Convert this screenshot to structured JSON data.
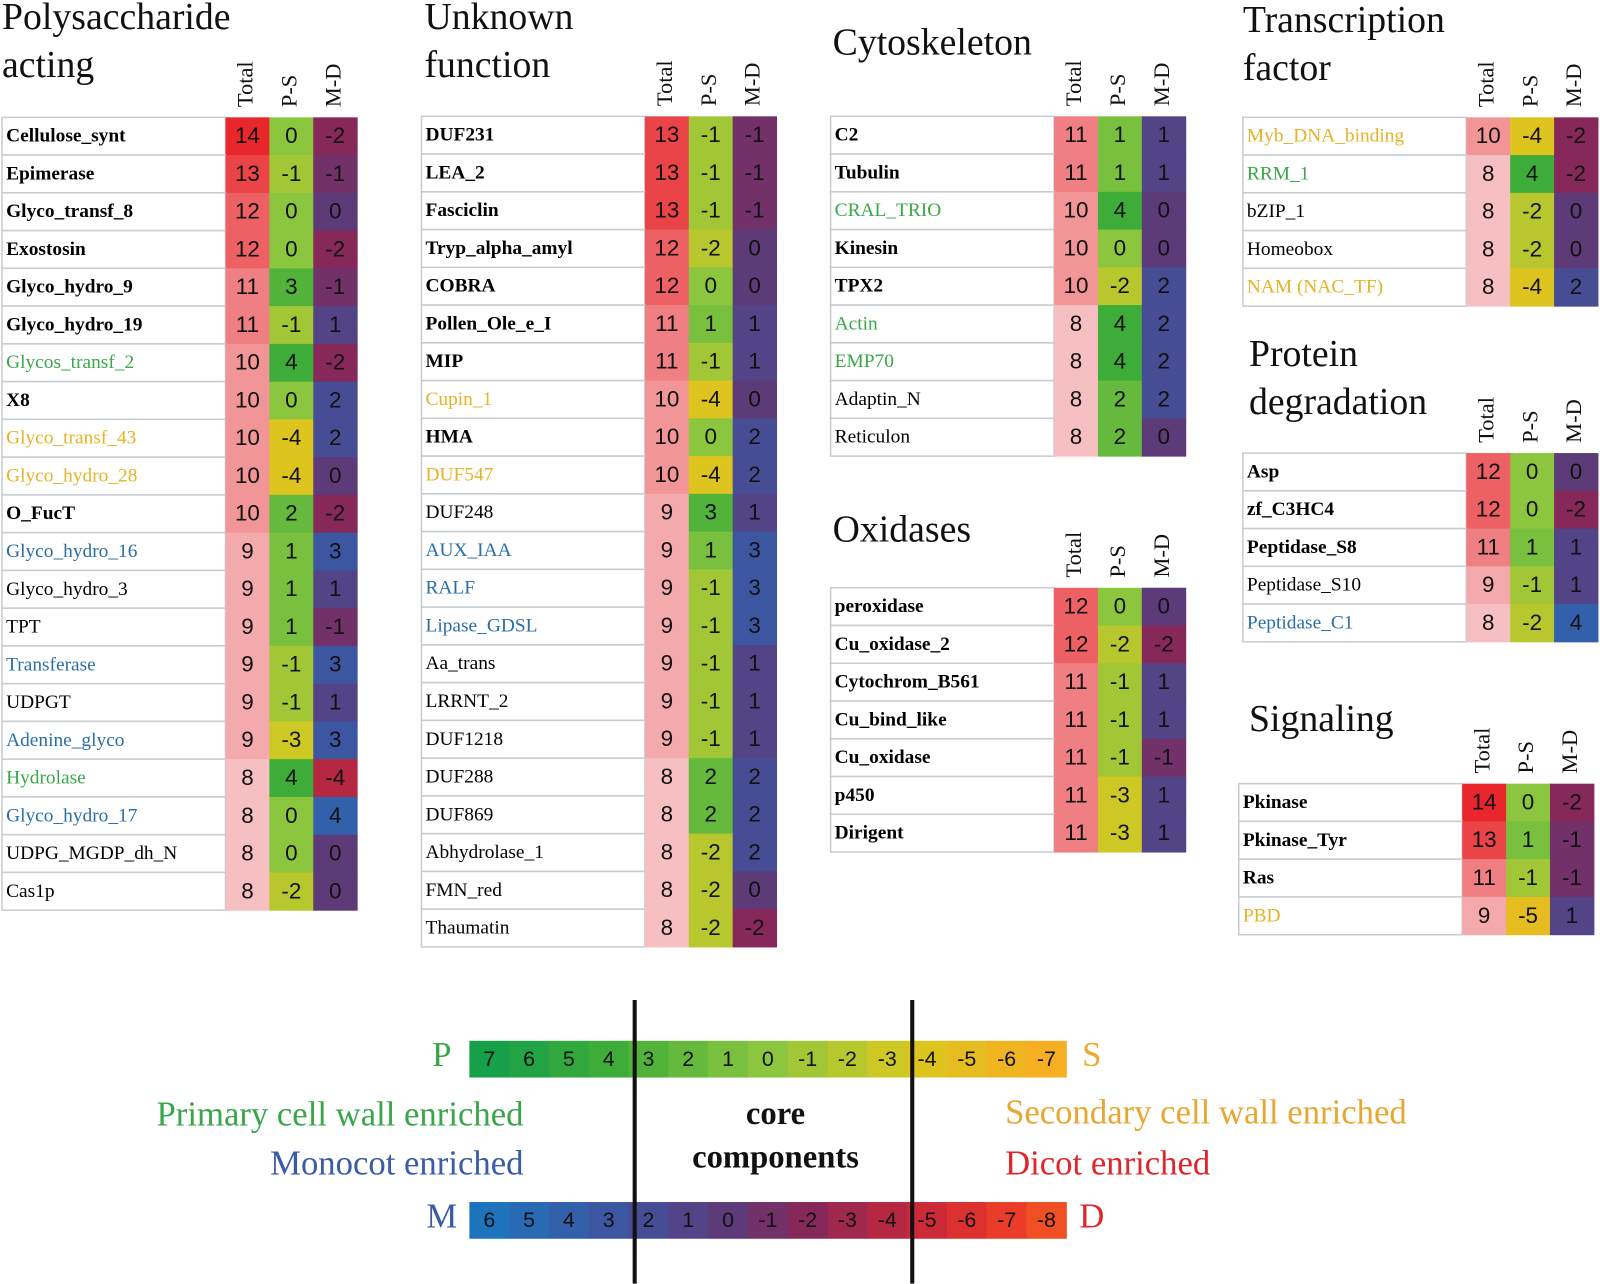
{
  "columns": [
    "Total",
    "P-S",
    "M-D"
  ],
  "panels": [
    {
      "title": [
        "Polysaccharide",
        "acting"
      ],
      "rows": [
        {
          "name": "Cellulose_synt",
          "color": "#000000",
          "bold": true,
          "total": 14,
          "ps": 0,
          "md": -2
        },
        {
          "name": "Epimerase",
          "color": "#000000",
          "bold": true,
          "total": 13,
          "ps": -1,
          "md": -1
        },
        {
          "name": "Glyco_transf_8",
          "color": "#000000",
          "bold": true,
          "total": 12,
          "ps": 0,
          "md": 0
        },
        {
          "name": "Exostosin",
          "color": "#000000",
          "bold": true,
          "total": 12,
          "ps": 0,
          "md": -2
        },
        {
          "name": "Glyco_hydro_9",
          "color": "#000000",
          "bold": true,
          "total": 11,
          "ps": 3,
          "md": -1
        },
        {
          "name": "Glyco_hydro_19",
          "color": "#000000",
          "bold": true,
          "total": 11,
          "ps": -1,
          "md": 1
        },
        {
          "name": "Glycos_transf_2",
          "color": "#3aa64a",
          "bold": false,
          "total": 10,
          "ps": 4,
          "md": -2
        },
        {
          "name": "X8",
          "color": "#000000",
          "bold": true,
          "total": 10,
          "ps": 0,
          "md": 2
        },
        {
          "name": "Glyco_transf_43",
          "color": "#e6b325",
          "bold": false,
          "total": 10,
          "ps": -4,
          "md": 2
        },
        {
          "name": "Glyco_hydro_28",
          "color": "#e6b325",
          "bold": false,
          "total": 10,
          "ps": -4,
          "md": 0
        },
        {
          "name": "O_FucT",
          "color": "#000000",
          "bold": true,
          "total": 10,
          "ps": 2,
          "md": -2
        },
        {
          "name": "Glyco_hydro_16",
          "color": "#2a6ea6",
          "bold": false,
          "total": 9,
          "ps": 1,
          "md": 3
        },
        {
          "name": "Glyco_hydro_3",
          "color": "#000000",
          "bold": false,
          "total": 9,
          "ps": 1,
          "md": 1
        },
        {
          "name": "TPT",
          "color": "#000000",
          "bold": false,
          "total": 9,
          "ps": 1,
          "md": -1
        },
        {
          "name": "Transferase",
          "color": "#2a6ea6",
          "bold": false,
          "total": 9,
          "ps": -1,
          "md": 3
        },
        {
          "name": "UDPGT",
          "color": "#000000",
          "bold": false,
          "total": 9,
          "ps": -1,
          "md": 1
        },
        {
          "name": "Adenine_glyco",
          "color": "#2a6ea6",
          "bold": false,
          "total": 9,
          "ps": -3,
          "md": 3
        },
        {
          "name": "Hydrolase",
          "color": "#3aa64a",
          "bold": false,
          "total": 8,
          "ps": 4,
          "md": -4
        },
        {
          "name": "Glyco_hydro_17",
          "color": "#2a6ea6",
          "bold": false,
          "total": 8,
          "ps": 0,
          "md": 4
        },
        {
          "name": "UDPG_MGDP_dh_N",
          "color": "#000000",
          "bold": false,
          "total": 8,
          "ps": 0,
          "md": 0
        },
        {
          "name": "Cas1p",
          "color": "#000000",
          "bold": false,
          "total": 8,
          "ps": -2,
          "md": 0
        }
      ]
    },
    {
      "title": [
        "Unknown",
        "function"
      ],
      "rows": [
        {
          "name": "DUF231",
          "color": "#000000",
          "bold": true,
          "total": 13,
          "ps": -1,
          "md": -1
        },
        {
          "name": "LEA_2",
          "color": "#000000",
          "bold": true,
          "total": 13,
          "ps": -1,
          "md": -1
        },
        {
          "name": "Fasciclin",
          "color": "#000000",
          "bold": true,
          "total": 13,
          "ps": -1,
          "md": -1
        },
        {
          "name": "Tryp_alpha_amyl",
          "color": "#000000",
          "bold": true,
          "total": 12,
          "ps": -2,
          "md": 0
        },
        {
          "name": "COBRA",
          "color": "#000000",
          "bold": true,
          "total": 12,
          "ps": 0,
          "md": 0
        },
        {
          "name": "Pollen_Ole_e_I",
          "color": "#000000",
          "bold": true,
          "total": 11,
          "ps": 1,
          "md": 1
        },
        {
          "name": "MIP",
          "color": "#000000",
          "bold": true,
          "total": 11,
          "ps": -1,
          "md": 1
        },
        {
          "name": "Cupin_1",
          "color": "#e6b325",
          "bold": false,
          "total": 10,
          "ps": -4,
          "md": 0
        },
        {
          "name": "HMA",
          "color": "#000000",
          "bold": true,
          "total": 10,
          "ps": 0,
          "md": 2
        },
        {
          "name": "DUF547",
          "color": "#e6b325",
          "bold": false,
          "total": 10,
          "ps": -4,
          "md": 2
        },
        {
          "name": "DUF248",
          "color": "#000000",
          "bold": false,
          "total": 9,
          "ps": 3,
          "md": 1
        },
        {
          "name": "AUX_IAA",
          "color": "#2a6ea6",
          "bold": false,
          "total": 9,
          "ps": 1,
          "md": 3
        },
        {
          "name": "RALF",
          "color": "#2a6ea6",
          "bold": false,
          "total": 9,
          "ps": -1,
          "md": 3
        },
        {
          "name": "Lipase_GDSL",
          "color": "#2a6ea6",
          "bold": false,
          "total": 9,
          "ps": -1,
          "md": 3
        },
        {
          "name": "Aa_trans",
          "color": "#000000",
          "bold": false,
          "total": 9,
          "ps": -1,
          "md": 1
        },
        {
          "name": "LRRNT_2",
          "color": "#000000",
          "bold": false,
          "total": 9,
          "ps": -1,
          "md": 1
        },
        {
          "name": "DUF1218",
          "color": "#000000",
          "bold": false,
          "total": 9,
          "ps": -1,
          "md": 1
        },
        {
          "name": "DUF288",
          "color": "#000000",
          "bold": false,
          "total": 8,
          "ps": 2,
          "md": 2
        },
        {
          "name": "DUF869",
          "color": "#000000",
          "bold": false,
          "total": 8,
          "ps": 2,
          "md": 2
        },
        {
          "name": "Abhydrolase_1",
          "color": "#000000",
          "bold": false,
          "total": 8,
          "ps": -2,
          "md": 2
        },
        {
          "name": "FMN_red",
          "color": "#000000",
          "bold": false,
          "total": 8,
          "ps": -2,
          "md": 0
        },
        {
          "name": "Thaumatin",
          "color": "#000000",
          "bold": false,
          "total": 8,
          "ps": -2,
          "md": -2
        }
      ]
    },
    {
      "title": [
        "Cytoskeleton"
      ],
      "rows": [
        {
          "name": "C2",
          "color": "#000000",
          "bold": true,
          "total": 11,
          "ps": 1,
          "md": 1
        },
        {
          "name": "Tubulin",
          "color": "#000000",
          "bold": true,
          "total": 11,
          "ps": 1,
          "md": 1
        },
        {
          "name": "CRAL_TRIO",
          "color": "#3aa64a",
          "bold": false,
          "total": 10,
          "ps": 4,
          "md": 0
        },
        {
          "name": "Kinesin",
          "color": "#000000",
          "bold": true,
          "total": 10,
          "ps": 0,
          "md": 0
        },
        {
          "name": "TPX2",
          "color": "#000000",
          "bold": true,
          "total": 10,
          "ps": -2,
          "md": 2
        },
        {
          "name": "Actin",
          "color": "#3aa64a",
          "bold": false,
          "total": 8,
          "ps": 4,
          "md": 2
        },
        {
          "name": "EMP70",
          "color": "#3aa64a",
          "bold": false,
          "total": 8,
          "ps": 4,
          "md": 2
        },
        {
          "name": "Adaptin_N",
          "color": "#000000",
          "bold": false,
          "total": 8,
          "ps": 2,
          "md": 2
        },
        {
          "name": "Reticulon",
          "color": "#000000",
          "bold": false,
          "total": 8,
          "ps": 2,
          "md": 0
        }
      ]
    },
    {
      "title": [
        "Oxidases"
      ],
      "rows": [
        {
          "name": "peroxidase",
          "color": "#000000",
          "bold": true,
          "total": 12,
          "ps": 0,
          "md": 0
        },
        {
          "name": "Cu_oxidase_2",
          "color": "#000000",
          "bold": true,
          "total": 12,
          "ps": -2,
          "md": -2
        },
        {
          "name": "Cytochrom_B561",
          "color": "#000000",
          "bold": true,
          "total": 11,
          "ps": -1,
          "md": 1
        },
        {
          "name": "Cu_bind_like",
          "color": "#000000",
          "bold": true,
          "total": 11,
          "ps": -1,
          "md": 1
        },
        {
          "name": "Cu_oxidase",
          "color": "#000000",
          "bold": true,
          "total": 11,
          "ps": -1,
          "md": -1
        },
        {
          "name": "p450",
          "color": "#000000",
          "bold": true,
          "total": 11,
          "ps": -3,
          "md": 1
        },
        {
          "name": "Dirigent",
          "color": "#000000",
          "bold": true,
          "total": 11,
          "ps": -3,
          "md": 1
        }
      ]
    },
    {
      "title": [
        "Transcription",
        "factor"
      ],
      "rows": [
        {
          "name": "Myb_DNA_binding",
          "color": "#e6b325",
          "bold": false,
          "total": 10,
          "ps": -4,
          "md": -2
        },
        {
          "name": "RRM_1",
          "color": "#3aa64a",
          "bold": false,
          "total": 8,
          "ps": 4,
          "md": -2
        },
        {
          "name": "bZIP_1",
          "color": "#000000",
          "bold": false,
          "total": 8,
          "ps": -2,
          "md": 0
        },
        {
          "name": "Homeobox",
          "color": "#000000",
          "bold": false,
          "total": 8,
          "ps": -2,
          "md": 0
        },
        {
          "name": "NAM (NAC_TF)",
          "color": "#e6b325",
          "bold": false,
          "total": 8,
          "ps": -4,
          "md": 2
        }
      ]
    },
    {
      "title": [
        "Protein",
        "degradation"
      ],
      "rows": [
        {
          "name": "Asp",
          "color": "#000000",
          "bold": true,
          "total": 12,
          "ps": 0,
          "md": 0
        },
        {
          "name": "zf_C3HC4",
          "color": "#000000",
          "bold": true,
          "total": 12,
          "ps": 0,
          "md": -2
        },
        {
          "name": "Peptidase_S8",
          "color": "#000000",
          "bold": true,
          "total": 11,
          "ps": 1,
          "md": 1
        },
        {
          "name": "Peptidase_S10",
          "color": "#000000",
          "bold": false,
          "total": 9,
          "ps": -1,
          "md": 1
        },
        {
          "name": "Peptidase_C1",
          "color": "#2a6ea6",
          "bold": false,
          "total": 8,
          "ps": -2,
          "md": 4
        }
      ]
    },
    {
      "title": [
        "Signaling"
      ],
      "rows": [
        {
          "name": "Pkinase",
          "color": "#000000",
          "bold": true,
          "total": 14,
          "ps": 0,
          "md": -2
        },
        {
          "name": "Pkinase_Tyr",
          "color": "#000000",
          "bold": true,
          "total": 13,
          "ps": 1,
          "md": -1
        },
        {
          "name": "Ras",
          "color": "#000000",
          "bold": true,
          "total": 11,
          "ps": -1,
          "md": -1
        },
        {
          "name": "PBD",
          "color": "#e6b325",
          "bold": false,
          "total": 9,
          "ps": -5,
          "md": 1
        }
      ]
    }
  ],
  "legend": {
    "ps": {
      "left": "P",
      "right": "S",
      "left_color": "#3aa64a",
      "right_color": "#f0a830",
      "values": [
        7,
        6,
        5,
        4,
        3,
        2,
        1,
        0,
        -1,
        -2,
        -3,
        -4,
        -5,
        -6,
        -7
      ]
    },
    "md": {
      "left": "M",
      "right": "D",
      "left_color": "#3a5ba8",
      "right_color": "#e0262b",
      "values": [
        6,
        5,
        4,
        3,
        2,
        1,
        0,
        -1,
        -2,
        -3,
        -4,
        -5,
        -6,
        -7,
        -8
      ]
    },
    "primary": {
      "text": "Primary cell wall enriched",
      "color": "#3aa64a"
    },
    "secondary": {
      "text": "Secondary cell wall enriched",
      "color": "#e6a830"
    },
    "monocot": {
      "text": "Monocot enriched",
      "color": "#3a5ba8"
    },
    "dicot": {
      "text": "Dicot enriched",
      "color": "#e0262b"
    },
    "core": [
      "core",
      "components"
    ]
  }
}
